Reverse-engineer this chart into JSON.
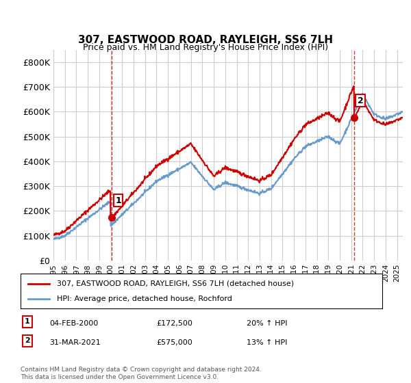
{
  "title": "307, EASTWOOD ROAD, RAYLEIGH, SS6 7LH",
  "subtitle": "Price paid vs. HM Land Registry's House Price Index (HPI)",
  "ylabel_ticks": [
    "£0",
    "£100K",
    "£200K",
    "£300K",
    "£400K",
    "£500K",
    "£600K",
    "£700K",
    "£800K"
  ],
  "ytick_vals": [
    0,
    100000,
    200000,
    300000,
    400000,
    500000,
    600000,
    700000,
    800000
  ],
  "ylim": [
    0,
    850000
  ],
  "legend_line1": "307, EASTWOOD ROAD, RAYLEIGH, SS6 7LH (detached house)",
  "legend_line2": "HPI: Average price, detached house, Rochford",
  "marker1_label": "1",
  "marker1_date": "04-FEB-2000",
  "marker1_price": "£172,500",
  "marker1_pct": "20% ↑ HPI",
  "marker1_x": 2000.09,
  "marker1_y": 172500,
  "marker2_label": "2",
  "marker2_date": "31-MAR-2021",
  "marker2_price": "£575,000",
  "marker2_pct": "13% ↑ HPI",
  "marker2_x": 2021.25,
  "marker2_y": 575000,
  "red_color": "#cc0000",
  "blue_color": "#6699cc",
  "vline_color": "#cc0000",
  "grid_color": "#cccccc",
  "bg_color": "#ffffff",
  "footer": "Contains HM Land Registry data © Crown copyright and database right 2024.\nThis data is licensed under the Open Government Licence v3.0.",
  "xlim_start": 1995.0,
  "xlim_end": 2025.5
}
